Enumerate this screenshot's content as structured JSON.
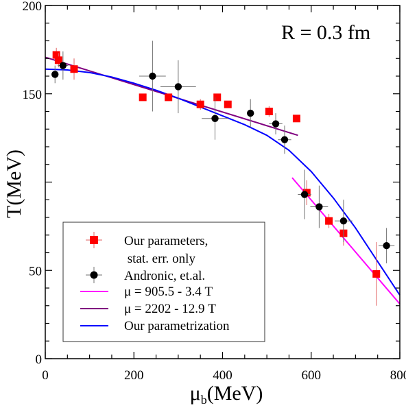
{
  "chart_data": {
    "type": "scatter",
    "annotation": "R = 0.3 fm",
    "xlabel": "μ",
    "xlabel_sub": "b",
    "xlabel_unit": "(MeV)",
    "ylabel": "T(MeV)",
    "xlim": [
      0,
      800
    ],
    "ylim": [
      0,
      200
    ],
    "xticks": [
      {
        "v": 0,
        "label": "0"
      },
      {
        "v": 200,
        "label": "200"
      },
      {
        "v": 400,
        "label": "400"
      },
      {
        "v": 600,
        "label": "600"
      },
      {
        "v": 800,
        "label": "800"
      }
    ],
    "yticks": [
      {
        "v": 0,
        "label": "0"
      },
      {
        "v": 50,
        "label": "50"
      },
      {
        "v": 150,
        "label": "150"
      },
      {
        "v": 200,
        "label": "200"
      }
    ],
    "series": [
      {
        "name": "Our parameters,",
        "name_line2": " stat. err. only",
        "kind": "points",
        "marker": "square",
        "color": "#ff0000",
        "errcolor": "#e06060",
        "points": [
          {
            "x": 25,
            "y": 172,
            "ex": 5,
            "ey": 4
          },
          {
            "x": 30,
            "y": 169,
            "ex": 5,
            "ey": 4
          },
          {
            "x": 65,
            "y": 164,
            "ex": 6,
            "ey": 6
          },
          {
            "x": 220,
            "y": 148,
            "ex": 0,
            "ey": 1
          },
          {
            "x": 278,
            "y": 148,
            "ex": 0,
            "ey": 2
          },
          {
            "x": 350,
            "y": 144,
            "ex": 0,
            "ey": 3
          },
          {
            "x": 388,
            "y": 148,
            "ex": 0,
            "ey": 2
          },
          {
            "x": 412,
            "y": 144,
            "ex": 0,
            "ey": 1
          },
          {
            "x": 505,
            "y": 140,
            "ex": 0,
            "ey": 3
          },
          {
            "x": 567,
            "y": 136,
            "ex": 0,
            "ey": 2
          },
          {
            "x": 590,
            "y": 94,
            "ex": 0,
            "ey": 7
          },
          {
            "x": 640,
            "y": 78,
            "ex": 0,
            "ey": 4
          },
          {
            "x": 673,
            "y": 71,
            "ex": 0,
            "ey": 7
          },
          {
            "x": 747,
            "y": 48,
            "ex": 0,
            "ey": 18
          }
        ]
      },
      {
        "name": "Andronic, et.al.",
        "kind": "points",
        "marker": "circle",
        "color": "#000000",
        "errcolor": "#707070",
        "points": [
          {
            "x": 22,
            "y": 161,
            "ex": 6,
            "ey": 5
          },
          {
            "x": 40,
            "y": 166,
            "ex": 12,
            "ey": 8
          },
          {
            "x": 242,
            "y": 160,
            "ex": 30,
            "ey": 20
          },
          {
            "x": 300,
            "y": 154,
            "ex": 40,
            "ey": 15
          },
          {
            "x": 383,
            "y": 136,
            "ex": 30,
            "ey": 12
          },
          {
            "x": 463,
            "y": 139,
            "ex": 0,
            "ey": 8
          },
          {
            "x": 520,
            "y": 133,
            "ex": 15,
            "ey": 6
          },
          {
            "x": 540,
            "y": 124,
            "ex": 15,
            "ey": 8
          },
          {
            "x": 585,
            "y": 93,
            "ex": 15,
            "ey": 14
          },
          {
            "x": 618,
            "y": 86,
            "ex": 20,
            "ey": 12
          },
          {
            "x": 673,
            "y": 78,
            "ex": 20,
            "ey": 12
          },
          {
            "x": 770,
            "y": 64,
            "ex": 18,
            "ey": 10
          }
        ]
      },
      {
        "name": "μ = 905.5 - 3.4 T",
        "kind": "line",
        "color": "#ff00ff",
        "points": [
          {
            "x": 557,
            "y": 102.5
          },
          {
            "x": 800,
            "y": 31.0
          }
        ]
      },
      {
        "name": "μ = 2202 - 12.9 T",
        "kind": "line",
        "color": "#800080",
        "points": [
          {
            "x": 0,
            "y": 170.7
          },
          {
            "x": 570,
            "y": 126.5
          }
        ]
      },
      {
        "name": "Our parametrization",
        "kind": "line",
        "color": "#0000ff",
        "points": [
          {
            "x": 0,
            "y": 164
          },
          {
            "x": 50,
            "y": 163.5
          },
          {
            "x": 100,
            "y": 162
          },
          {
            "x": 150,
            "y": 159.5
          },
          {
            "x": 200,
            "y": 156
          },
          {
            "x": 250,
            "y": 152
          },
          {
            "x": 300,
            "y": 147.5
          },
          {
            "x": 350,
            "y": 142.5
          },
          {
            "x": 400,
            "y": 137.5
          },
          {
            "x": 450,
            "y": 132.5
          },
          {
            "x": 500,
            "y": 126.5
          },
          {
            "x": 550,
            "y": 118
          },
          {
            "x": 600,
            "y": 106
          },
          {
            "x": 650,
            "y": 91
          },
          {
            "x": 700,
            "y": 74
          },
          {
            "x": 750,
            "y": 55
          },
          {
            "x": 800,
            "y": 36
          }
        ]
      }
    ],
    "legend": {
      "position": "bottom-left"
    }
  }
}
